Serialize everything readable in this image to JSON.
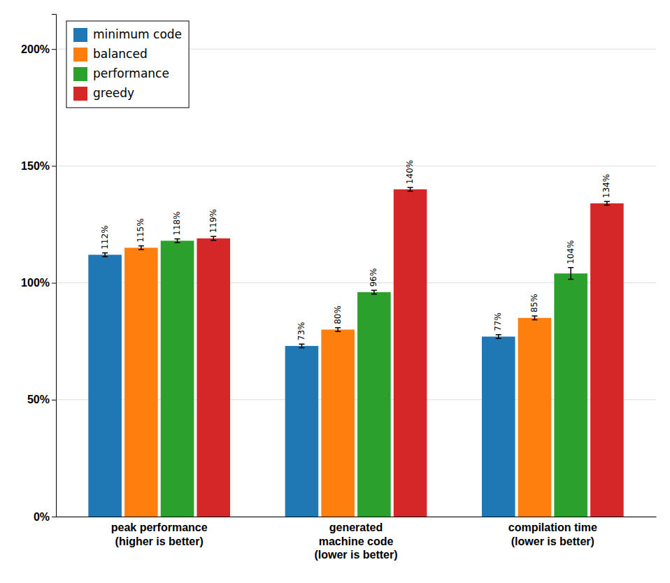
{
  "chart_data": {
    "type": "bar",
    "categories": [
      "peak performance\n(higher is better)",
      "generated\nmachine code\n(lower is better)",
      "compilation time\n(lower is better)"
    ],
    "series": [
      {
        "name": "minimum code",
        "values": [
          112,
          73,
          77
        ],
        "errors": [
          0.8,
          0.8,
          0.8
        ],
        "value_labels": [
          "112%",
          "73%",
          "77%"
        ]
      },
      {
        "name": "balanced",
        "values": [
          115,
          80,
          85
        ],
        "errors": [
          0.8,
          0.8,
          0.8
        ],
        "value_labels": [
          "115%",
          "80%",
          "85%"
        ]
      },
      {
        "name": "performance",
        "values": [
          118,
          96,
          104
        ],
        "errors": [
          0.8,
          0.8,
          2.5
        ],
        "value_labels": [
          "118%",
          "96%",
          "104%"
        ]
      },
      {
        "name": "greedy",
        "values": [
          119,
          140,
          134
        ],
        "errors": [
          0.8,
          0.8,
          0.8
        ],
        "value_labels": [
          "119%",
          "140%",
          "134%"
        ]
      }
    ],
    "ylim": [
      0,
      215
    ],
    "yticks": [
      {
        "value": 0,
        "label": "0%"
      },
      {
        "value": 50,
        "label": "50%"
      },
      {
        "value": 100,
        "label": "100%"
      },
      {
        "value": 150,
        "label": "150%"
      },
      {
        "value": 200,
        "label": "200%"
      }
    ],
    "grid": true,
    "legend": "upper left",
    "data_labels": true
  }
}
